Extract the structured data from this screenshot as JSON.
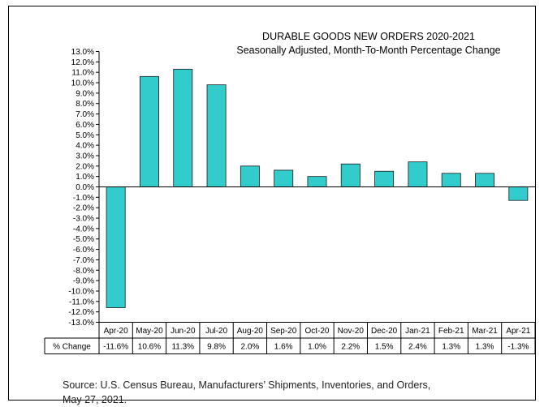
{
  "chart_data": {
    "type": "bar",
    "title": "DURABLE GOODS NEW ORDERS 2020-2021",
    "subtitle": "Seasonally Adjusted,  Month-To-Month Percentage Change",
    "categories": [
      "Apr-20",
      "May-20",
      "Jun-20",
      "Jul-20",
      "Aug-20",
      "Sep-20",
      "Oct-20",
      "Nov-20",
      "Dec-20",
      "Jan-21",
      "Feb-21",
      "Mar-21",
      "Apr-21"
    ],
    "values": [
      -11.6,
      10.6,
      11.3,
      9.8,
      2.0,
      1.6,
      1.0,
      2.2,
      1.5,
      2.4,
      1.3,
      1.3,
      -1.3
    ],
    "value_labels": [
      "-11.6%",
      "10.6%",
      "11.3%",
      "9.8%",
      "2.0%",
      "1.6%",
      "1.0%",
      "2.2%",
      "1.5%",
      "2.4%",
      "1.3%",
      "1.3%",
      "-1.3%"
    ],
    "table_row_label": "% Change",
    "ylim": [
      -13,
      13
    ],
    "ytick_step": 1,
    "ytick_format": "percent_one_decimal",
    "grid": false,
    "legend": false,
    "bar_color": "#33CCCC",
    "xlabel": "",
    "ylabel": ""
  },
  "source_line1": "Source: U.S. Census Bureau, Manufacturers’ Shipments, Inventories, and Orders,",
  "source_line2": "May 27, 2021."
}
